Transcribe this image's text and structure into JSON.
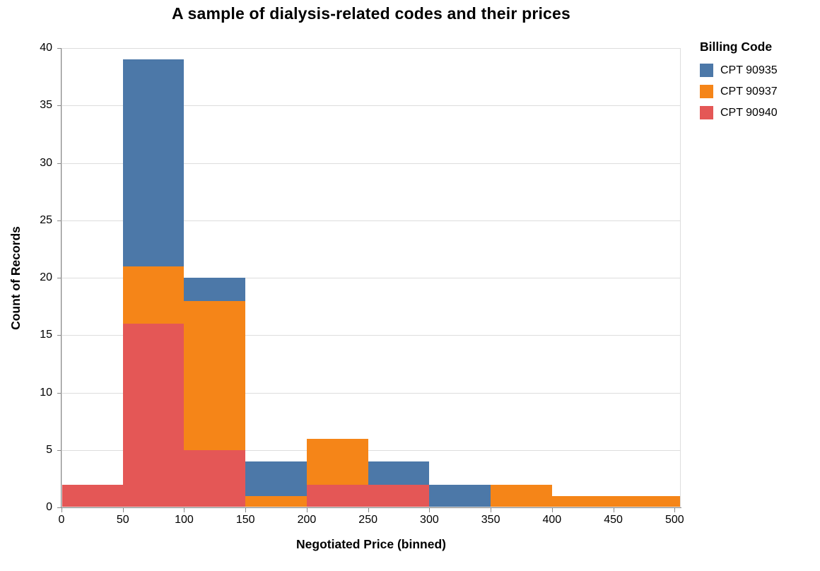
{
  "title": "A sample of dialysis-related codes and their prices",
  "legend": {
    "title": "Billing Code",
    "entries": [
      {
        "label": "CPT 90935",
        "color": "#4C78A8"
      },
      {
        "label": "CPT 90937",
        "color": "#F58518"
      },
      {
        "label": "CPT 90940",
        "color": "#E45756"
      }
    ]
  },
  "chart_data": {
    "type": "bar",
    "subtype": "stacked-histogram",
    "title": "A sample of dialysis-related codes and their prices",
    "xlabel": "Negotiated Price (binned)",
    "ylabel": "Count of Records",
    "legend_title": "Billing Code",
    "legend_position": "right",
    "bin_edges": [
      0,
      50,
      100,
      150,
      200,
      250,
      300,
      350,
      400,
      450,
      500
    ],
    "bin_labels": [
      "0-50",
      "50-100",
      "100-150",
      "150-200",
      "200-250",
      "250-300",
      "300-350",
      "350-400",
      "400-450",
      "450-500"
    ],
    "series": [
      {
        "name": "CPT 90935",
        "color": "#4C78A8",
        "values": [
          0,
          18,
          2,
          3,
          0,
          2,
          2,
          0,
          0,
          0
        ]
      },
      {
        "name": "CPT 90937",
        "color": "#F58518",
        "values": [
          0,
          5,
          13,
          1,
          4,
          0,
          0,
          2,
          1,
          1
        ]
      },
      {
        "name": "CPT 90940",
        "color": "#E45756",
        "values": [
          2,
          16,
          5,
          0,
          2,
          2,
          0,
          0,
          0,
          0
        ]
      }
    ],
    "bin_totals": [
      2,
      39,
      20,
      4,
      6,
      4,
      2,
      2,
      1,
      1
    ],
    "stack_order_bottom_to_top": [
      "CPT 90940",
      "CPT 90937",
      "CPT 90935"
    ],
    "xlim": [
      0,
      505
    ],
    "ylim": [
      0,
      40
    ],
    "xticks": [
      0,
      50,
      100,
      150,
      200,
      250,
      300,
      350,
      400,
      450,
      500
    ],
    "yticks": [
      0,
      5,
      10,
      15,
      20,
      25,
      30,
      35,
      40
    ],
    "grid": "horizontal",
    "extend_last_bin_to_xmax": true
  },
  "colors": {
    "grid": "#dddddd",
    "axis": "#888888",
    "plot_border": "#dddddd",
    "text": "#000000",
    "background": "#ffffff"
  }
}
